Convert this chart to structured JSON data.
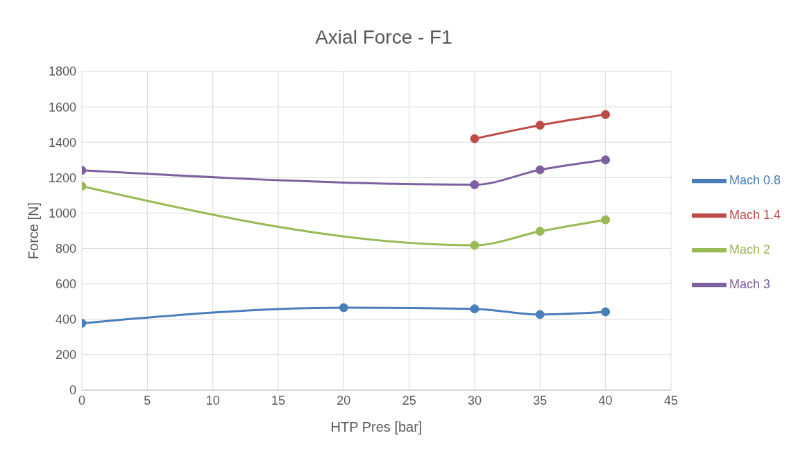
{
  "chart_data": {
    "type": "line",
    "title": "Axial Force - F1",
    "xlabel": "HTP Pres [bar]",
    "ylabel": "Force [N]",
    "xlim": [
      0,
      45
    ],
    "xticks": [
      0,
      5,
      10,
      15,
      20,
      25,
      30,
      35,
      40,
      45
    ],
    "ylim": [
      0,
      1800
    ],
    "yticks": [
      0,
      200,
      400,
      600,
      800,
      1000,
      1200,
      1400,
      1600,
      1800
    ],
    "grid": true,
    "legend": "right",
    "marker": "circle",
    "line_style": "solid",
    "series": [
      {
        "name": "Mach 0.8",
        "color": "#4a7ebb",
        "x": [
          0,
          20,
          30,
          35,
          40
        ],
        "values": [
          378,
          466,
          459,
          427,
          442
        ]
      },
      {
        "name": "Mach 1.4",
        "color": "#be4b48",
        "x": [
          30,
          35,
          40
        ],
        "values": [
          1420,
          1496,
          1556
        ]
      },
      {
        "name": "Mach 2",
        "color": "#98b954",
        "x": [
          0,
          30,
          35,
          40
        ],
        "values": [
          1152,
          818,
          897,
          962
        ]
      },
      {
        "name": "Mach 3",
        "color": "#7d60a0",
        "x": [
          0,
          30,
          35,
          40
        ],
        "values": [
          1241,
          1160,
          1244,
          1300
        ]
      }
    ]
  }
}
